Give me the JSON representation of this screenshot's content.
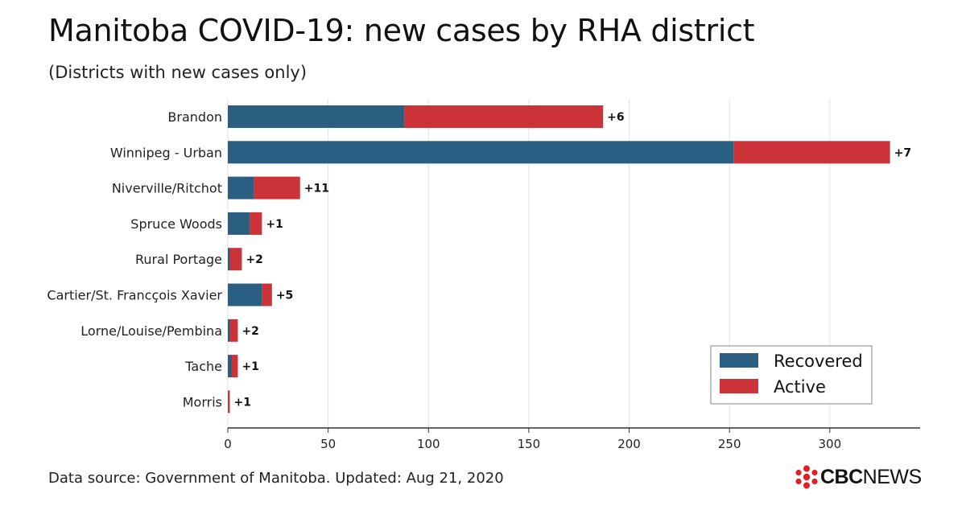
{
  "header": {
    "title": "Manitoba COVID-19: new cases by RHA district",
    "subtitle": "(Districts with new cases only)"
  },
  "footer": {
    "source": "Data source: Government of Manitoba. Updated: Aug 21, 2020",
    "logo_bold": "CBC",
    "logo_regular": "NEWS"
  },
  "colors": {
    "recovered": "#2a5f82",
    "active": "#cc3339",
    "gridline": "#e2e2e2",
    "axis": "#333333"
  },
  "chart_data": {
    "type": "bar",
    "orientation": "horizontal",
    "stacked": true,
    "categories": [
      "Brandon",
      "Winnipeg - Urban",
      "Niverville/Ritchot",
      "Spruce Woods",
      "Rural Portage",
      "Cartier/St. Francçois Xavier",
      "Lorne/Louise/Pembina",
      "Tache",
      "Morris"
    ],
    "series": [
      {
        "name": "Recovered",
        "values": [
          88,
          252,
          13,
          11,
          1,
          17,
          1,
          2,
          0
        ]
      },
      {
        "name": "Active",
        "values": [
          99,
          78,
          23,
          6,
          6,
          5,
          4,
          3,
          1
        ]
      }
    ],
    "annotations": [
      "+6",
      "+7",
      "+11",
      "+1",
      "+2",
      "+5",
      "+2",
      "+1",
      "+1"
    ],
    "xlim": [
      0,
      345
    ],
    "xticks": [
      0,
      50,
      100,
      150,
      200,
      250,
      300
    ],
    "grid": true,
    "legend_position": "bottom-right"
  }
}
